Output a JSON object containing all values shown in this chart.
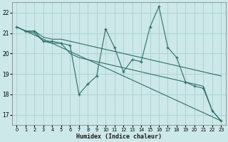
{
  "xlabel": "Humidex (Indice chaleur)",
  "bg_color": "#cce8e8",
  "grid_color": "#aacfcf",
  "line_color": "#2d7068",
  "xlim": [
    -0.5,
    23.5
  ],
  "ylim": [
    16.5,
    22.5
  ],
  "yticks": [
    17,
    18,
    19,
    20,
    21,
    22
  ],
  "xticks": [
    0,
    1,
    2,
    3,
    4,
    5,
    6,
    7,
    8,
    9,
    10,
    11,
    12,
    13,
    14,
    15,
    16,
    17,
    18,
    19,
    20,
    21,
    22,
    23
  ],
  "x": [
    0,
    1,
    2,
    3,
    4,
    5,
    6,
    7,
    8,
    9,
    10,
    11,
    12,
    13,
    14,
    15,
    16,
    17,
    18,
    19,
    20,
    21,
    22,
    23
  ],
  "y_main": [
    21.3,
    21.1,
    21.1,
    20.6,
    20.6,
    20.5,
    20.4,
    18.0,
    18.5,
    18.9,
    21.2,
    20.3,
    19.1,
    19.7,
    19.6,
    21.3,
    22.3,
    20.3,
    19.8,
    18.6,
    18.4,
    18.3,
    17.2,
    16.7
  ],
  "y_upper": [
    21.3,
    21.1,
    21.1,
    20.8,
    20.7,
    20.7,
    20.6,
    20.5,
    20.4,
    20.3,
    20.2,
    20.1,
    20.0,
    19.9,
    19.8,
    19.7,
    19.6,
    19.5,
    19.4,
    19.3,
    19.2,
    19.1,
    19.0,
    18.9
  ],
  "y_lower": [
    21.3,
    21.1,
    21.0,
    20.6,
    20.5,
    20.5,
    20.0,
    19.8,
    19.7,
    19.6,
    19.5,
    19.4,
    19.3,
    19.2,
    19.1,
    19.0,
    18.9,
    18.8,
    18.7,
    18.6,
    18.5,
    18.4,
    17.2,
    16.7
  ]
}
